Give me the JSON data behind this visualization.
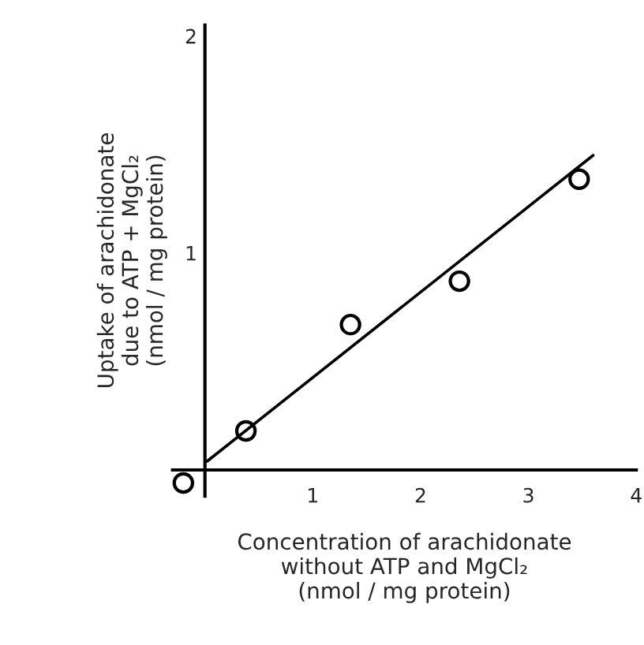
{
  "chart_data": {
    "type": "scatter",
    "xlabel": "Concentration of arachidonate\nwithout ATP and MgCl₂\n(nmol / mg protein)",
    "ylabel": "Uptake of arachidonate\ndue to ATP + MgCl₂\n(nmol / mg protein)",
    "series": [
      {
        "color": "#000000",
        "marker": "circle",
        "x": [
          -0.2,
          0.38,
          1.35,
          2.36,
          3.47
        ],
        "values": [
          -0.06,
          0.18,
          0.67,
          0.87,
          1.34
        ]
      },
      {
        "type": "line",
        "color": "#000000",
        "marker": "none",
        "line_style": "solid",
        "x": [
          0.02,
          3.6
        ],
        "values": [
          0.04,
          1.45
        ]
      }
    ],
    "xlim": [
      -0.3,
      4
    ],
    "ylim": [
      -0.12,
      2.05
    ],
    "xticks": [
      1,
      2,
      3,
      4
    ],
    "yticks": [
      1,
      2
    ],
    "grid": false,
    "legend": false
  }
}
